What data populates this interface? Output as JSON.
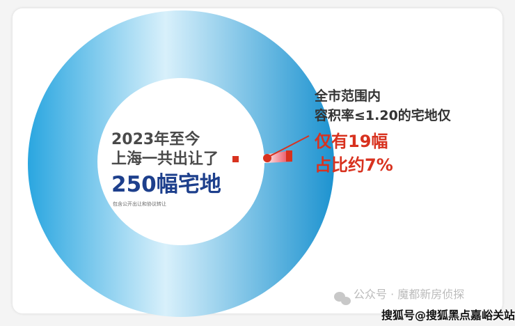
{
  "center": {
    "line1": "2023年至今",
    "line2": "上海一共出让了",
    "headline": "250幅宅地",
    "note": "包含公开出让和协议转让"
  },
  "callout": {
    "line1": "全市范围内",
    "line2": "容积率≤1.20的宅地仅",
    "highlight1": "仅有19幅",
    "highlight2": "占比约7%"
  },
  "values": {
    "total": 250,
    "subset": 19,
    "share_percent": 7
  },
  "colors": {
    "ring": "#1e9ad6",
    "highlight": "#d8321f",
    "headline": "#1d3f8c"
  },
  "watermark": {
    "wechat": "公众号 · 魔都新房侦探",
    "sohu": "搜狐号@搜狐黑点嘉峪关站"
  }
}
